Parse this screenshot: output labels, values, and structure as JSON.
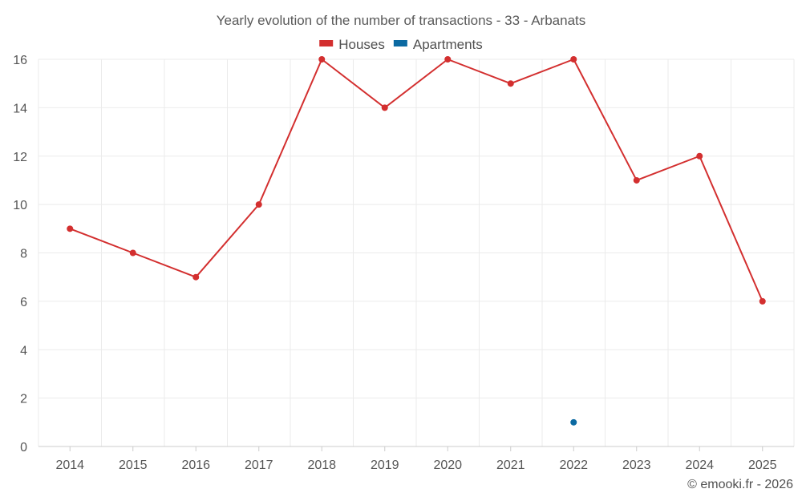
{
  "chart_data": {
    "type": "line",
    "title": "Yearly evolution of the number of transactions - 33 - Arbanats",
    "categories": [
      "2014",
      "2015",
      "2016",
      "2017",
      "2018",
      "2019",
      "2020",
      "2021",
      "2022",
      "2023",
      "2024",
      "2025"
    ],
    "series": [
      {
        "name": "Houses",
        "color": "#d32f2f",
        "values": [
          9,
          8,
          7,
          10,
          16,
          14,
          16,
          15,
          16,
          11,
          12,
          6
        ]
      },
      {
        "name": "Apartments",
        "color": "#0b6aa2",
        "values": [
          null,
          null,
          null,
          null,
          null,
          null,
          null,
          null,
          1,
          null,
          null,
          null
        ]
      }
    ],
    "ylim": [
      0,
      16
    ],
    "yticks": [
      0,
      2,
      4,
      6,
      8,
      10,
      12,
      14,
      16
    ],
    "xlabel": "",
    "ylabel": "",
    "grid": true,
    "legend_position": "top-center"
  },
  "credit": "© emooki.fr - 2026"
}
